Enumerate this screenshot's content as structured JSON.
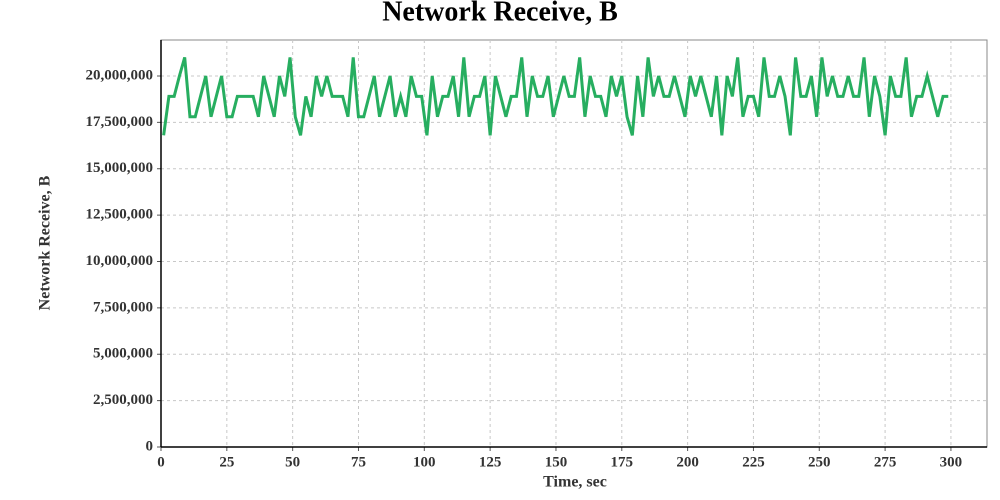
{
  "chart_data": {
    "type": "line",
    "title": "Network Receive, B",
    "x_label": "Time, sec",
    "y_label": "Network Receive, B",
    "color": "#27ae60",
    "grid": true,
    "xlim": [
      0,
      313.7
    ],
    "xticks": [
      0,
      25,
      50,
      75,
      100,
      125,
      150,
      175,
      200,
      225,
      250,
      275,
      300
    ],
    "ylim": [
      0,
      21940000
    ],
    "yticks": [
      0,
      {
        "value": 2500000,
        "label": "2,500,000"
      },
      {
        "value": 5000000,
        "label": "5,000,000"
      },
      {
        "value": 7500000,
        "label": "7,500,000"
      },
      {
        "value": 10000000,
        "label": "10,000,000"
      },
      {
        "value": 12500000,
        "label": "12,500,000"
      },
      {
        "value": 15000000,
        "label": "15,000,000"
      },
      {
        "value": 17500000,
        "label": "17,500,000"
      },
      {
        "value": 20000000,
        "label": "20,000,000"
      }
    ],
    "x": [
      1,
      3,
      5,
      7,
      9,
      11,
      13,
      15,
      17,
      19,
      21,
      23,
      25,
      27,
      29,
      31,
      33,
      35,
      37,
      39,
      41,
      43,
      45,
      47,
      49,
      51,
      53,
      55,
      57,
      59,
      61,
      63,
      65,
      67,
      69,
      71,
      73,
      75,
      77,
      79,
      81,
      83,
      85,
      87,
      89,
      91,
      93,
      95,
      97,
      99,
      101,
      103,
      105,
      107,
      109,
      111,
      113,
      115,
      117,
      119,
      121,
      123,
      125,
      127,
      129,
      131,
      133,
      135,
      137,
      139,
      141,
      143,
      145,
      147,
      149,
      151,
      153,
      155,
      157,
      159,
      161,
      163,
      165,
      167,
      169,
      171,
      173,
      175,
      177,
      179,
      181,
      183,
      185,
      187,
      189,
      191,
      193,
      195,
      197,
      199,
      201,
      203,
      205,
      207,
      209,
      211,
      213,
      215,
      217,
      219,
      221,
      223,
      225,
      227,
      229,
      231,
      233,
      235,
      237,
      239,
      241,
      243,
      245,
      247,
      249,
      251,
      253,
      255,
      257,
      259,
      261,
      263,
      265,
      267,
      269,
      271,
      273,
      275,
      277,
      279,
      281,
      283,
      285,
      287,
      289,
      291,
      293,
      295,
      297,
      299
    ],
    "values": [
      16800000,
      18900000,
      18900000,
      20000000,
      21000000,
      17800000,
      17800000,
      18900000,
      20000000,
      17800000,
      18900000,
      20000000,
      17800000,
      17800000,
      18900000,
      18900000,
      18900000,
      18900000,
      17800000,
      20000000,
      18900000,
      17800000,
      20000000,
      18900000,
      21000000,
      17800000,
      16800000,
      18900000,
      17800000,
      20000000,
      18900000,
      20000000,
      18900000,
      18900000,
      18900000,
      17800000,
      21000000,
      17800000,
      17800000,
      18900000,
      20000000,
      17800000,
      18900000,
      20000000,
      17800000,
      18900000,
      17800000,
      20000000,
      18900000,
      18900000,
      16800000,
      20000000,
      17800000,
      18900000,
      18900000,
      20000000,
      17800000,
      21000000,
      17800000,
      18900000,
      18900000,
      20000000,
      16800000,
      20000000,
      18900000,
      17800000,
      18900000,
      18900000,
      21000000,
      17800000,
      20000000,
      18900000,
      18900000,
      20000000,
      17800000,
      18900000,
      20000000,
      18900000,
      18900000,
      21000000,
      17800000,
      20000000,
      18900000,
      18900000,
      17800000,
      20000000,
      18900000,
      20000000,
      17800000,
      16800000,
      20000000,
      17800000,
      21000000,
      18900000,
      20000000,
      18900000,
      18900000,
      20000000,
      18900000,
      17800000,
      20000000,
      18900000,
      20000000,
      18900000,
      17800000,
      20000000,
      16800000,
      20000000,
      18900000,
      21000000,
      17800000,
      18900000,
      18900000,
      17800000,
      21000000,
      18900000,
      18900000,
      20000000,
      18900000,
      16800000,
      21000000,
      18900000,
      18900000,
      20000000,
      17800000,
      21000000,
      18900000,
      20000000,
      18900000,
      18900000,
      20000000,
      18900000,
      18900000,
      21000000,
      17800000,
      20000000,
      18900000,
      16800000,
      20000000,
      18900000,
      18900000,
      21000000,
      17800000,
      18900000,
      18900000,
      20000000,
      18900000,
      17800000,
      18900000,
      18900000
    ]
  }
}
